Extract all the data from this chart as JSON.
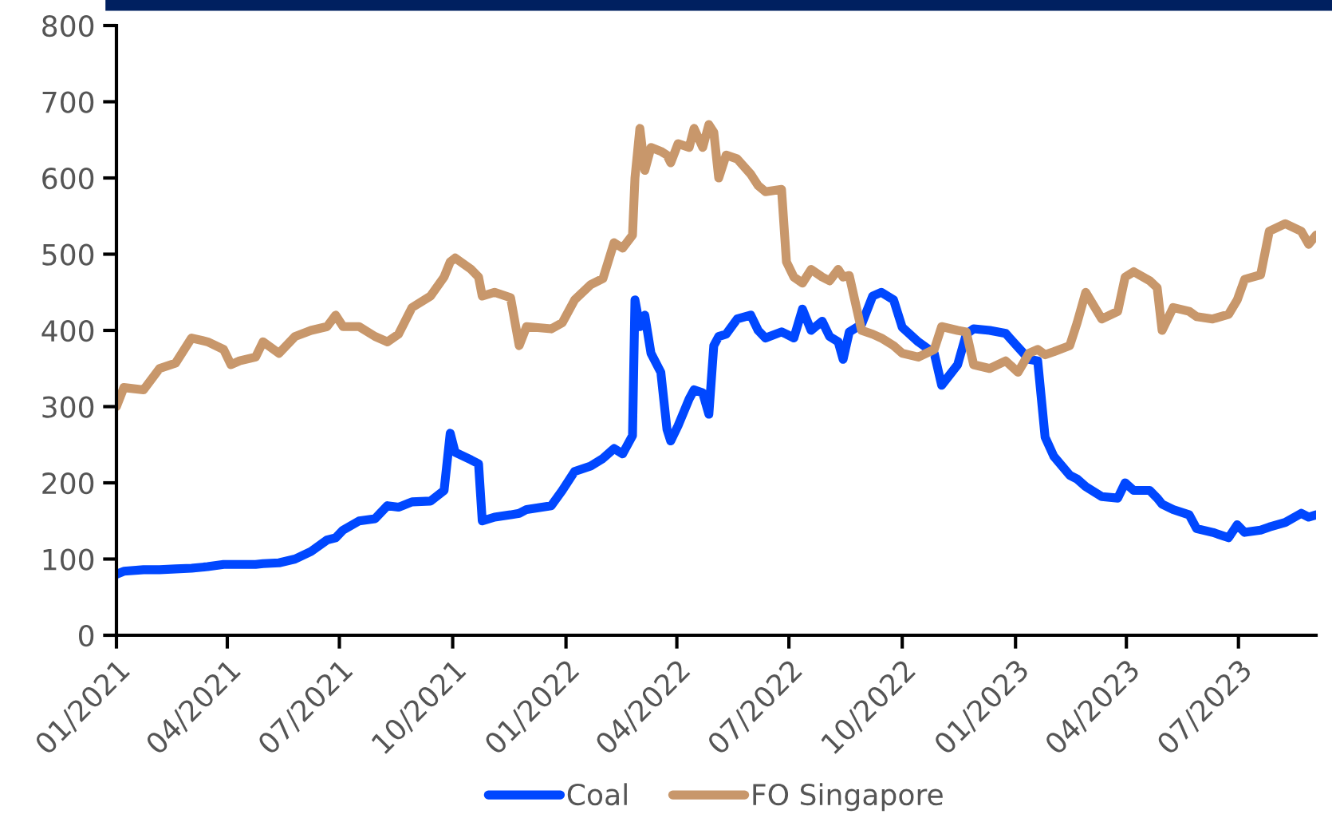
{
  "chart_data": {
    "type": "line",
    "x": [
      "2021-01-01",
      "2021-01-07",
      "2021-01-23",
      "2021-02-05",
      "2021-02-18",
      "2021-03-03",
      "2021-03-16",
      "2021-03-29",
      "2021-04-04",
      "2021-04-11",
      "2021-04-24",
      "2021-04-30",
      "2021-05-13",
      "2021-05-26",
      "2021-06-08",
      "2021-06-21",
      "2021-06-28",
      "2021-07-04",
      "2021-07-17",
      "2021-07-30",
      "2021-08-09",
      "2021-08-18",
      "2021-08-29",
      "2021-09-13",
      "2021-09-24",
      "2021-09-29",
      "2021-10-03",
      "2021-10-16",
      "2021-10-22",
      "2021-10-25",
      "2021-11-04",
      "2021-11-17",
      "2021-11-24",
      "2021-11-30",
      "2021-12-20",
      "2021-12-29",
      "2022-01-08",
      "2022-01-21",
      "2022-01-31",
      "2022-02-09",
      "2022-02-16",
      "2022-02-24",
      "2022-02-26",
      "2022-03-02",
      "2022-03-06",
      "2022-03-11",
      "2022-03-19",
      "2022-03-24",
      "2022-03-27",
      "2022-04-02",
      "2022-04-11",
      "2022-04-15",
      "2022-04-22",
      "2022-04-27",
      "2022-05-01",
      "2022-05-05",
      "2022-05-11",
      "2022-05-20",
      "2022-05-31",
      "2022-06-06",
      "2022-06-12",
      "2022-06-25",
      "2022-06-29",
      "2022-07-05",
      "2022-07-12",
      "2022-07-19",
      "2022-07-28",
      "2022-08-03",
      "2022-08-10",
      "2022-08-14",
      "2022-08-19",
      "2022-08-29",
      "2022-09-07",
      "2022-09-14",
      "2022-09-24",
      "2022-10-01",
      "2022-10-14",
      "2022-10-27",
      "2022-11-02",
      "2022-11-15",
      "2022-11-22",
      "2022-11-28",
      "2022-12-11",
      "2022-12-24",
      "2023-01-03",
      "2023-01-12",
      "2023-01-19",
      "2023-01-25",
      "2023-02-01",
      "2023-02-14",
      "2023-02-20",
      "2023-02-27",
      "2023-03-12",
      "2023-03-25",
      "2023-03-31",
      "2023-04-07",
      "2023-04-20",
      "2023-04-26",
      "2023-04-30",
      "2023-05-09",
      "2023-05-22",
      "2023-05-28",
      "2023-06-10",
      "2023-06-23",
      "2023-06-30",
      "2023-07-06",
      "2023-07-19",
      "2023-07-26",
      "2023-08-08",
      "2023-08-21",
      "2023-08-27",
      "2023-09-02"
    ],
    "series": [
      {
        "name": "Coal",
        "color": "#0047ff",
        "values": [
          80,
          84,
          86,
          86,
          87,
          88,
          90,
          93,
          93,
          93,
          93,
          94,
          95,
          100,
          110,
          125,
          128,
          138,
          150,
          153,
          170,
          168,
          175,
          176,
          190,
          265,
          240,
          230,
          225,
          150,
          155,
          158,
          160,
          165,
          170,
          190,
          215,
          222,
          232,
          245,
          238,
          262,
          440,
          405,
          420,
          370,
          345,
          270,
          255,
          275,
          310,
          322,
          318,
          290,
          380,
          392,
          395,
          415,
          420,
          400,
          390,
          398,
          395,
          390,
          428,
          400,
          412,
          392,
          385,
          362,
          398,
          408,
          445,
          450,
          440,
          404,
          385,
          370,
          328,
          355,
          395,
          402,
          400,
          396,
          378,
          362,
          360,
          260,
          235,
          210,
          205,
          195,
          182,
          180,
          200,
          190,
          190,
          180,
          172,
          165,
          158,
          140,
          135,
          128,
          145,
          135,
          138,
          142,
          148,
          160,
          155,
          158
        ]
      },
      {
        "name": "FO Singapore",
        "color": "#c8976b",
        "values": [
          300,
          325,
          322,
          350,
          357,
          390,
          385,
          375,
          355,
          360,
          365,
          385,
          370,
          392,
          400,
          405,
          420,
          405,
          405,
          392,
          385,
          395,
          430,
          445,
          470,
          490,
          495,
          480,
          470,
          445,
          450,
          443,
          380,
          405,
          402,
          410,
          440,
          460,
          468,
          515,
          508,
          525,
          600,
          665,
          610,
          640,
          635,
          630,
          620,
          645,
          640,
          665,
          640,
          670,
          660,
          600,
          630,
          625,
          605,
          590,
          582,
          585,
          490,
          470,
          462,
          480,
          470,
          465,
          480,
          470,
          472,
          400,
          395,
          390,
          380,
          370,
          365,
          375,
          405,
          400,
          398,
          355,
          350,
          360,
          345,
          370,
          375,
          368,
          372,
          380,
          410,
          450,
          415,
          425,
          470,
          477,
          465,
          456,
          400,
          430,
          425,
          418,
          415,
          421,
          440,
          467,
          473,
          530,
          540,
          530,
          513,
          525
        ]
      }
    ],
    "xlim": [
      "2021-01-01",
      "2023-09-02"
    ],
    "xticks": [
      {
        "value": "2021-01-01",
        "label": "01/2021"
      },
      {
        "value": "2021-04-01",
        "label": "04/2021"
      },
      {
        "value": "2021-07-01",
        "label": "07/2021"
      },
      {
        "value": "2021-10-01",
        "label": "10/2021"
      },
      {
        "value": "2022-01-01",
        "label": "01/2022"
      },
      {
        "value": "2022-04-01",
        "label": "04/2022"
      },
      {
        "value": "2022-07-01",
        "label": "07/2022"
      },
      {
        "value": "2022-10-01",
        "label": "10/2022"
      },
      {
        "value": "2023-01-01",
        "label": "01/2023"
      },
      {
        "value": "2023-04-01",
        "label": "04/2023"
      },
      {
        "value": "2023-07-01",
        "label": "07/2023"
      }
    ],
    "ylim": [
      0,
      800
    ],
    "yticks": [
      0,
      100,
      200,
      300,
      400,
      500,
      600,
      700,
      800
    ],
    "grid": false,
    "legend": "bottom",
    "marker": "none",
    "line_style": "solid"
  }
}
